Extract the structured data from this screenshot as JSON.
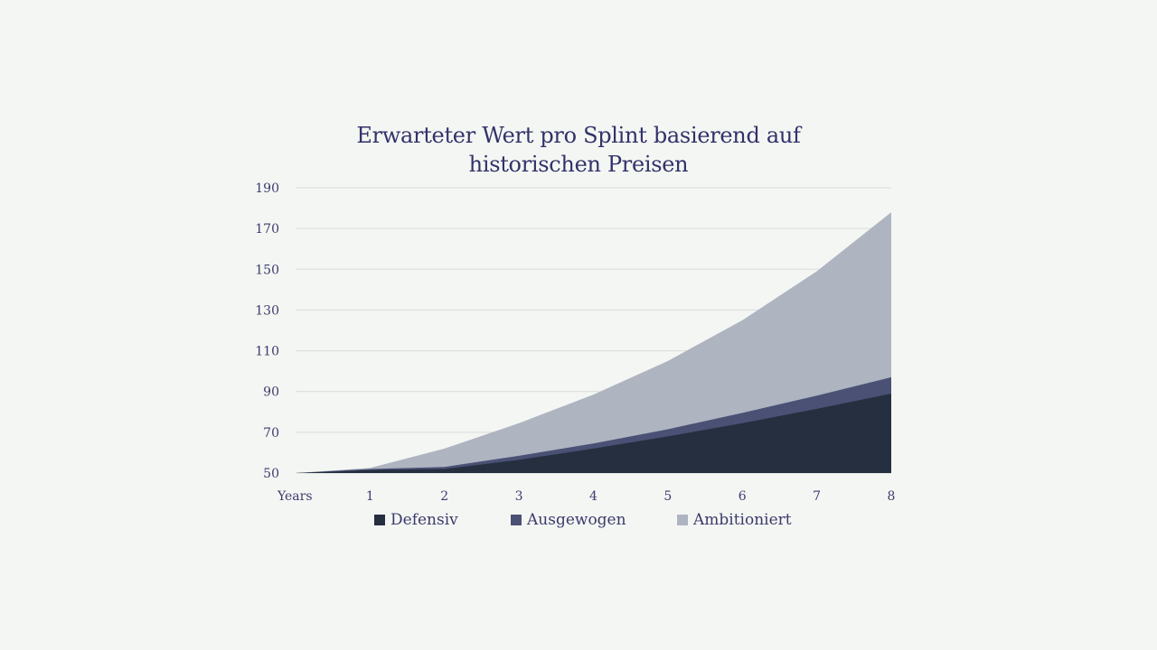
{
  "chart_data": {
    "type": "area",
    "stacked": false,
    "title": "Erwarteter Wert pro Splint basierend auf historischen Preisen",
    "title_lines": [
      "Erwarteter Wert pro Splint basierend auf",
      "historischen Preisen"
    ],
    "xlabel": "Years",
    "ylabel": "",
    "x": [
      0,
      1,
      2,
      3,
      4,
      5,
      6,
      7,
      8
    ],
    "x_tick_labels": [
      "Years",
      "1",
      "2",
      "3",
      "4",
      "5",
      "6",
      "7",
      "8"
    ],
    "y_ticks": [
      50,
      70,
      90,
      110,
      130,
      150,
      170,
      190
    ],
    "ylim": [
      50,
      190
    ],
    "grid": "horizontal",
    "legend_position": "bottom",
    "series": [
      {
        "name": "Ambitioniert",
        "color": "#aeb4c0",
        "values": [
          50,
          52.5,
          62,
          74.5,
          88.5,
          105,
          125,
          149,
          178
        ]
      },
      {
        "name": "Ausgewogen",
        "color": "#4a5175",
        "values": [
          50,
          52,
          53,
          58.5,
          64.5,
          71.5,
          79.5,
          88,
          97
        ]
      },
      {
        "name": "Defensiv",
        "color": "#262f40",
        "values": [
          50,
          51.5,
          52,
          56.5,
          62,
          68,
          74.5,
          81.5,
          89
        ]
      }
    ],
    "legend": [
      "Defensiv",
      "Ausgewogen",
      "Ambitioniert"
    ]
  }
}
